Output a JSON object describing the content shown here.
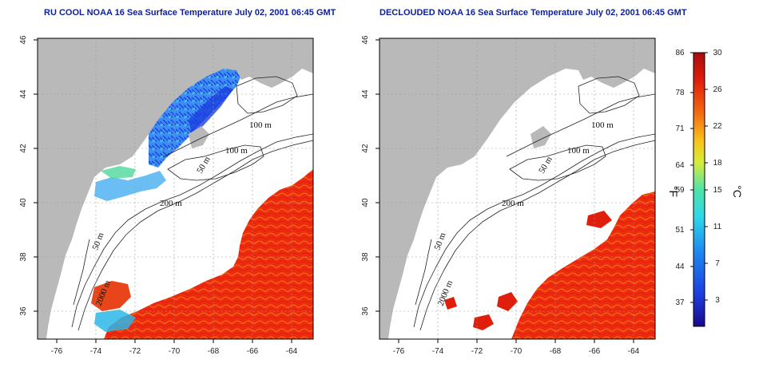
{
  "panels": [
    {
      "id": "ru-cool",
      "title": "RU COOL NOAA 16 Sea Surface Temperature July 02, 2001 06:45 GMT",
      "x_ticks": [
        "-76",
        "-74",
        "-72",
        "-70",
        "-68",
        "-66",
        "-64"
      ],
      "y_ticks": [
        "36",
        "38",
        "40",
        "42",
        "44",
        "46"
      ],
      "contour_labels": [
        "100 m",
        "100 m",
        "50 m",
        "200 m",
        "50 m",
        "2000 m"
      ]
    },
    {
      "id": "declouded",
      "title": "DECLOUDED NOAA 16 Sea Surface Temperature July 02, 2001 06:45 GMT",
      "x_ticks": [
        "-76",
        "-74",
        "-72",
        "-70",
        "-68",
        "-66",
        "-64"
      ],
      "y_ticks": [
        "36",
        "38",
        "40",
        "42",
        "44",
        "46"
      ],
      "contour_labels": [
        "100 m",
        "100 m",
        "50 m",
        "200 m",
        "50 m",
        "2000 m"
      ]
    }
  ],
  "colorbar": {
    "fahrenheit_ticks": [
      "86",
      "78",
      "71",
      "64",
      "59",
      "51",
      "44",
      "37"
    ],
    "celsius_ticks": [
      "30",
      "26",
      "22",
      "18",
      "15",
      "11",
      "7",
      "3"
    ],
    "fahrenheit_unit": "°F",
    "celsius_unit": "°C",
    "colors": [
      "#1a0a8c",
      "#1c3fe0",
      "#1f8cf0",
      "#2fd8e8",
      "#4fe3a8",
      "#d8ec3a",
      "#f7c21a",
      "#f36a12",
      "#e01e0c",
      "#a80c0c"
    ]
  },
  "colors": {
    "land": "#b9b9b9",
    "water_cloud_masked": "#ffffff",
    "contour": "#222222",
    "grid": "#9a9a9a",
    "title": "#0b1f9c"
  }
}
